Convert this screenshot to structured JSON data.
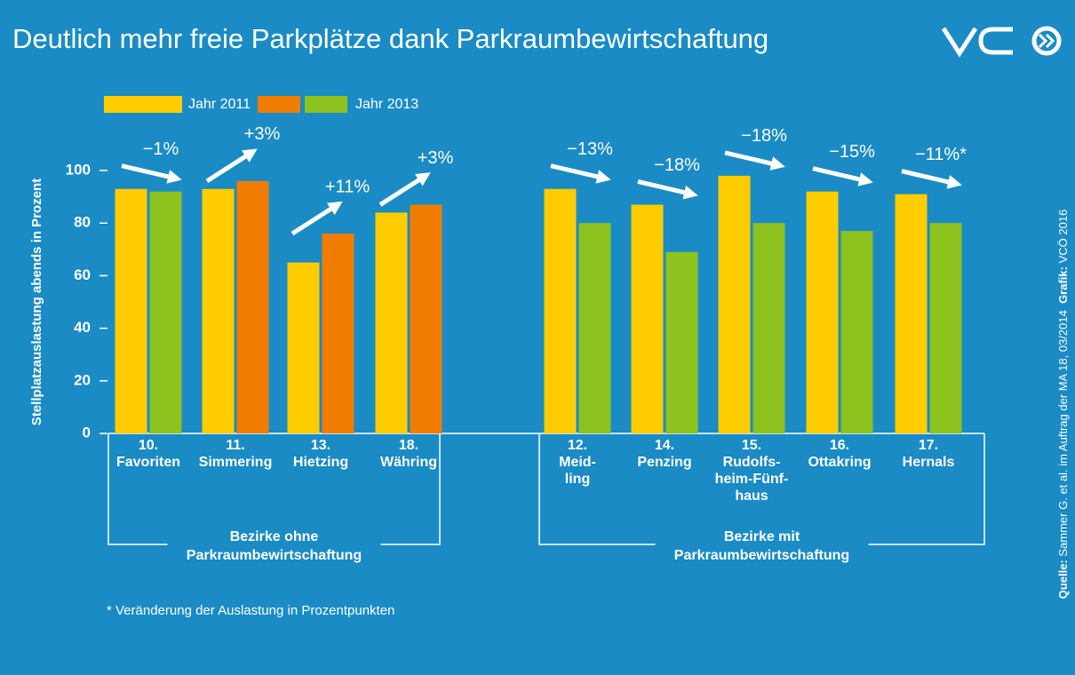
{
  "chart_data": {
    "type": "bar",
    "title": "Deutlich mehr freie Parkplätze dank Parkraumbewirtschaftung",
    "y_axis_label": "Stellplatzauslastung abends in Prozent",
    "categories": [
      [
        "10.",
        "Favoriten"
      ],
      [
        "11.",
        "Simmering"
      ],
      [
        "13.",
        "Hietzing"
      ],
      [
        "18.",
        "Währing"
      ],
      [
        "12.",
        "Meid-",
        "ling"
      ],
      [
        "14.",
        "Penzing"
      ],
      [
        "15.",
        "Rudolfs-",
        "heim-Fünf-",
        "haus"
      ],
      [
        "16.",
        "Ottakring"
      ],
      [
        "17.",
        "Hernals"
      ]
    ],
    "series": [
      {
        "name": "Jahr 2011",
        "color": "#ffcc00",
        "values": [
          93,
          93,
          65,
          84,
          93,
          87,
          98,
          92,
          91
        ]
      },
      {
        "name": "Jahr 2013",
        "colors": [
          "#8dc21f",
          "#f07d00",
          "#f07d00",
          "#f07d00",
          "#8dc21f",
          "#8dc21f",
          "#8dc21f",
          "#8dc21f",
          "#8dc21f"
        ],
        "values": [
          92,
          96,
          76,
          87,
          80,
          69,
          80,
          77,
          80
        ]
      }
    ],
    "change_labels": [
      "−1%",
      "+3%",
      "+11%",
      "+3%",
      "−13%",
      "−18%",
      "−18%",
      "−15%",
      "−11%*"
    ],
    "groups": [
      [
        "Bezirke ohne",
        "Parkraumbewirtschaftung"
      ],
      [
        "Bezirke mit",
        "Parkraumbewirtschaftung"
      ]
    ],
    "footnote": "* Veränderung der Auslastung in Prozentpunkten",
    "source": [
      {
        "text": "Quelle:",
        "bold": true
      },
      {
        "text": " Sammer G. et al. im Auftrag der MA 18, 03/2014  "
      },
      {
        "text": "Grafik:",
        "bold": true
      },
      {
        "text": " VCÖ 2016"
      }
    ],
    "ylim": [
      0,
      100
    ],
    "yticks": [
      0,
      20,
      40,
      60,
      80,
      100
    ],
    "grid": false
  }
}
